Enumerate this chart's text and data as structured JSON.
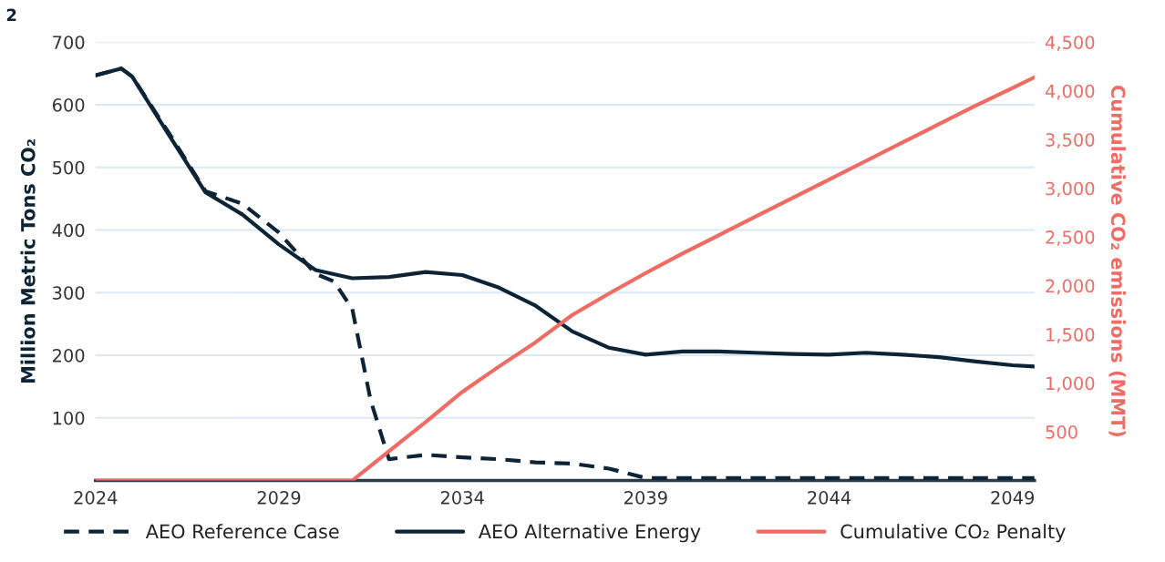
{
  "chart_data": {
    "type": "line",
    "ylabel": "Million Metric Tons CO₂",
    "y2label": "Cumulative CO₂ emissions (MMT)",
    "annotations": [
      "2"
    ],
    "x": [
      2024,
      2025,
      2026,
      2027,
      2028,
      2029,
      2030,
      2031,
      2032,
      2033,
      2034,
      2035,
      2036,
      2037,
      2038,
      2039,
      2040,
      2041,
      2042,
      2043,
      2044,
      2045,
      2046,
      2047,
      2048,
      2049,
      2049.6
    ],
    "series": [
      {
        "name": "AEO Reference Case",
        "color": "#0d2436",
        "line_style": "dashed",
        "x": [
          2024,
          2024.7,
          2025,
          2026,
          2027,
          2028,
          2029,
          2030,
          2030.5,
          2031,
          2031.5,
          2032,
          2033,
          2034,
          2035,
          2036,
          2037,
          2038,
          2039,
          2040,
          2042,
          2044,
          2046,
          2048,
          2049.6
        ],
        "values": [
          647,
          658,
          645,
          555,
          462,
          442,
          396,
          330,
          318,
          274,
          128,
          34,
          41,
          37,
          34,
          29,
          27,
          19,
          4,
          4,
          4,
          4,
          4,
          4,
          4
        ]
      },
      {
        "name": "AEO Alternative Energy",
        "color": "#0d2436",
        "line_style": "solid",
        "x": [
          2024,
          2024.7,
          2025,
          2026,
          2027,
          2028,
          2029,
          2030,
          2031,
          2032,
          2033,
          2034,
          2035,
          2036,
          2037,
          2038,
          2039,
          2040,
          2041,
          2042,
          2043,
          2044,
          2045,
          2046,
          2047,
          2048,
          2049,
          2049.6
        ],
        "values": [
          647,
          658,
          645,
          552,
          460,
          425,
          377,
          336,
          323,
          325,
          333,
          328,
          308,
          279,
          238,
          212,
          201,
          206,
          206,
          204,
          202,
          201,
          204,
          201,
          197,
          190,
          184,
          182
        ]
      },
      {
        "name": "Cumulative CO₂ Penalty",
        "color": "#ef6b63",
        "line_style": "solid",
        "axis": "y2",
        "values": [
          0,
          0,
          0,
          0,
          0,
          0,
          0,
          0,
          300,
          600,
          910,
          1170,
          1420,
          1700,
          1920,
          2130,
          2330,
          2520,
          2710,
          2900,
          3090,
          3280,
          3470,
          3660,
          3850,
          4030,
          4140
        ]
      }
    ],
    "xlim": [
      2024,
      2049.6
    ],
    "xticks": [
      2024,
      2029,
      2034,
      2039,
      2044,
      2049
    ],
    "ylim": [
      0,
      700
    ],
    "yticks": [
      100,
      200,
      300,
      400,
      500,
      600,
      700
    ],
    "y2lim": [
      0,
      4500
    ],
    "y2ticks": [
      {
        "value": 500,
        "label": "500"
      },
      {
        "value": 1000,
        "label": "1,000"
      },
      {
        "value": 1500,
        "label": "1,500"
      },
      {
        "value": 2000,
        "label": "2,000"
      },
      {
        "value": 2500,
        "label": "2,500"
      },
      {
        "value": 3000,
        "label": "3,000"
      },
      {
        "value": 3500,
        "label": "3,500"
      },
      {
        "value": 4000,
        "label": "4,000"
      },
      {
        "value": 4500,
        "label": "4,500"
      }
    ],
    "grid": "y",
    "legend": "bottom",
    "marker": "none"
  }
}
